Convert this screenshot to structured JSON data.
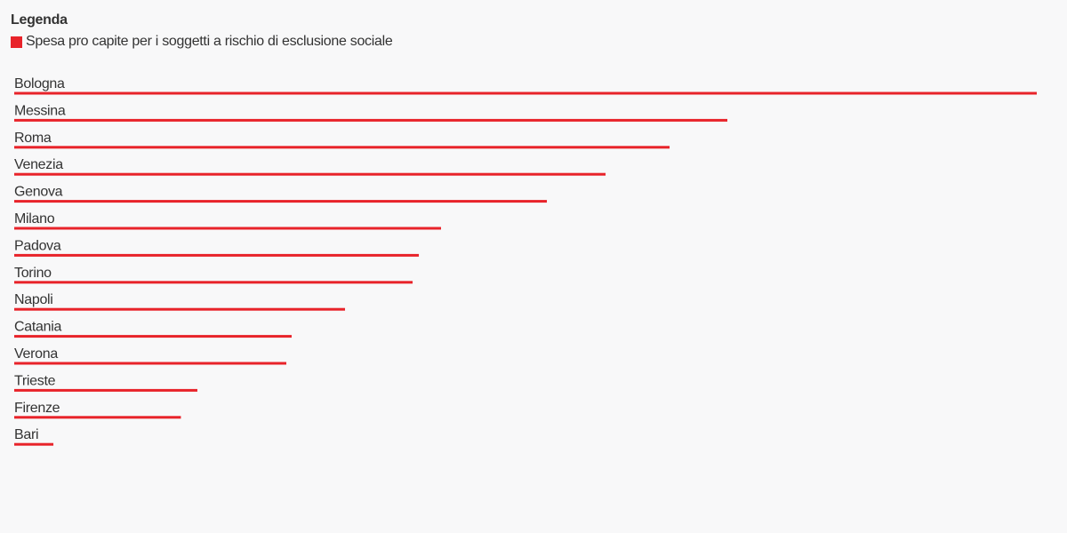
{
  "chart_data": {
    "type": "bar",
    "orientation": "horizontal",
    "legend": {
      "title": "Legenda",
      "placement": "top-left"
    },
    "series": [
      {
        "name": "Spesa pro capite per i soggetti a rischio di esclusione sociale",
        "color": "#e8232a",
        "values": [
          1.0,
          0.6974,
          0.6409,
          0.5783,
          0.5209,
          0.4174,
          0.3957,
          0.3896,
          0.3235,
          0.2713,
          0.2661,
          0.1791,
          0.163,
          0.0383
        ]
      }
    ],
    "categories": [
      "Bologna",
      "Messina",
      "Roma",
      "Venezia",
      "Genova",
      "Milano",
      "Padova",
      "Torino",
      "Napoli",
      "Catania",
      "Verona",
      "Trieste",
      "Firenze",
      "Bari"
    ],
    "grid": false,
    "axes_visible": false
  }
}
